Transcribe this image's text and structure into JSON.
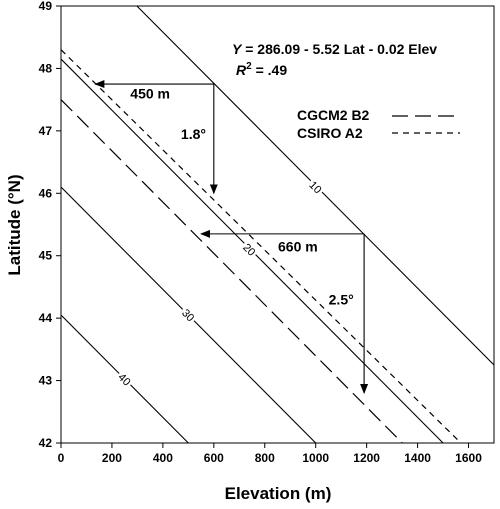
{
  "chart_data": {
    "type": "line",
    "xlabel": "Elevation (m)",
    "ylabel": "Latitude (°N)",
    "xlim": [
      0,
      1700
    ],
    "ylim": [
      42,
      49
    ],
    "x_ticks": [
      0,
      200,
      400,
      600,
      800,
      1000,
      1200,
      1400,
      1600
    ],
    "y_ticks": [
      42,
      43,
      44,
      45,
      46,
      47,
      48,
      49
    ],
    "equation": {
      "y_var": "Y",
      "rest": " = 286.09 - 5.52 Lat - 0.02 Elev",
      "r2_var": "R",
      "r2_sup": "2",
      "r2_rest": " = .49"
    },
    "contours": [
      {
        "label": "10",
        "points": [
          [
            298,
            49
          ],
          [
            1700,
            43.25
          ]
        ],
        "label_at": [
          1000,
          46.1
        ]
      },
      {
        "label": "20",
        "points": [
          [
            0,
            48.15
          ],
          [
            1500,
            42
          ]
        ],
        "label_at": [
          740,
          45.1
        ]
      },
      {
        "label": "30",
        "points": [
          [
            0,
            46.1
          ],
          [
            1000,
            42
          ]
        ],
        "label_at": [
          500,
          44.05
        ]
      },
      {
        "label": "40",
        "points": [
          [
            0,
            44.05
          ],
          [
            500,
            42
          ]
        ],
        "label_at": [
          250,
          43.02
        ]
      }
    ],
    "series": [
      {
        "name": "CGCM2 B2",
        "style": "long-dash",
        "points": [
          [
            0,
            47.5
          ],
          [
            1340,
            42
          ]
        ]
      },
      {
        "name": "CSIRO A2",
        "style": "short-dash",
        "points": [
          [
            0,
            48.3
          ],
          [
            1570,
            42
          ]
        ]
      }
    ],
    "annotations": [
      {
        "text": "450 m",
        "at": [
          350,
          47.6
        ]
      },
      {
        "text": "1.8°",
        "at": [
          520,
          46.95
        ]
      },
      {
        "text": "660 m",
        "at": [
          930,
          45.15
        ]
      },
      {
        "text": "2.5°",
        "at": [
          1100,
          44.3
        ]
      }
    ],
    "arrows": [
      {
        "from": [
          600,
          47.75
        ],
        "to": [
          135,
          47.75
        ]
      },
      {
        "from": [
          600,
          47.75
        ],
        "to": [
          600,
          46.0
        ]
      },
      {
        "from": [
          1190,
          45.35
        ],
        "to": [
          550,
          45.35
        ]
      },
      {
        "from": [
          1190,
          45.35
        ],
        "to": [
          1190,
          42.8
        ]
      }
    ],
    "legend": {
      "placement": "top-right",
      "colors": {
        "line": "#000000"
      }
    }
  }
}
